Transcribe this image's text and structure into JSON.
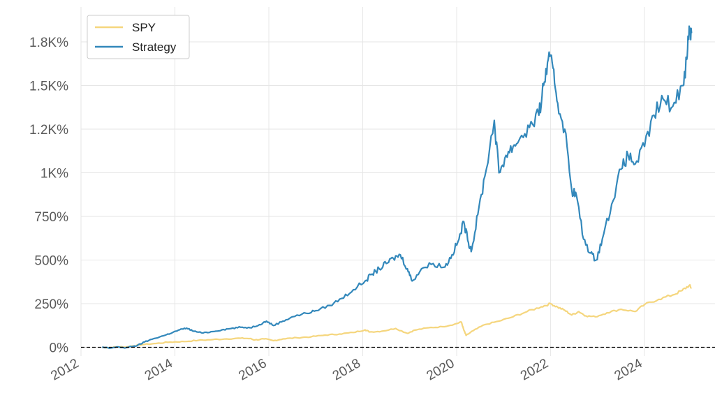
{
  "chart_data": {
    "type": "line",
    "title": "",
    "xlabel": "",
    "ylabel": "",
    "y_format": "percent",
    "xlim": [
      2012.0,
      2025.5
    ],
    "ylim": [
      -50,
      1950
    ],
    "x_ticks": [
      2012,
      2014,
      2016,
      2018,
      2020,
      2022,
      2024
    ],
    "x_tick_labels": [
      "2012",
      "2014",
      "2016",
      "2018",
      "2020",
      "2022",
      "2024"
    ],
    "y_ticks": [
      0,
      250,
      500,
      750,
      1000,
      1250,
      1500,
      1750
    ],
    "y_tick_labels": [
      "0%",
      "250%",
      "500%",
      "750%",
      "1K%",
      "1.2K%",
      "1.5K%",
      "1.8K%"
    ],
    "grid": true,
    "zero_line": {
      "value": 0,
      "style": "dashed",
      "color": "#000000"
    },
    "legend": {
      "position": "top-left",
      "entries": [
        "SPY",
        "Strategy"
      ]
    },
    "series": [
      {
        "name": "SPY",
        "color": "#f5d67e",
        "points": [
          [
            2012.45,
            0
          ],
          [
            2012.6,
            -2
          ],
          [
            2012.8,
            3
          ],
          [
            2012.95,
            1
          ],
          [
            2013.1,
            8
          ],
          [
            2013.3,
            15
          ],
          [
            2013.6,
            22
          ],
          [
            2013.9,
            30
          ],
          [
            2014.2,
            33
          ],
          [
            2014.5,
            40
          ],
          [
            2014.8,
            44
          ],
          [
            2015.1,
            48
          ],
          [
            2015.4,
            52
          ],
          [
            2015.6,
            50
          ],
          [
            2015.7,
            42
          ],
          [
            2015.9,
            48
          ],
          [
            2016.1,
            38
          ],
          [
            2016.3,
            48
          ],
          [
            2016.6,
            55
          ],
          [
            2016.9,
            60
          ],
          [
            2017.2,
            70
          ],
          [
            2017.5,
            76
          ],
          [
            2017.8,
            85
          ],
          [
            2018.05,
            100
          ],
          [
            2018.15,
            88
          ],
          [
            2018.4,
            92
          ],
          [
            2018.7,
            108
          ],
          [
            2018.95,
            80
          ],
          [
            2019.1,
            98
          ],
          [
            2019.4,
            112
          ],
          [
            2019.7,
            118
          ],
          [
            2019.95,
            132
          ],
          [
            2020.1,
            145
          ],
          [
            2020.15,
            100
          ],
          [
            2020.2,
            68
          ],
          [
            2020.35,
            95
          ],
          [
            2020.6,
            130
          ],
          [
            2020.9,
            150
          ],
          [
            2021.2,
            175
          ],
          [
            2021.5,
            205
          ],
          [
            2021.8,
            232
          ],
          [
            2022.0,
            250
          ],
          [
            2022.15,
            230
          ],
          [
            2022.3,
            212
          ],
          [
            2022.45,
            185
          ],
          [
            2022.6,
            205
          ],
          [
            2022.75,
            180
          ],
          [
            2022.95,
            175
          ],
          [
            2023.2,
            198
          ],
          [
            2023.5,
            218
          ],
          [
            2023.8,
            205
          ],
          [
            2024.0,
            245
          ],
          [
            2024.3,
            275
          ],
          [
            2024.6,
            300
          ],
          [
            2024.8,
            325
          ],
          [
            2024.95,
            355
          ],
          [
            2025.0,
            340
          ]
        ]
      },
      {
        "name": "Strategy",
        "color": "#3388bb",
        "points": [
          [
            2012.45,
            0
          ],
          [
            2012.6,
            -5
          ],
          [
            2012.8,
            2
          ],
          [
            2012.95,
            -3
          ],
          [
            2013.1,
            5
          ],
          [
            2013.2,
            10
          ],
          [
            2013.35,
            30
          ],
          [
            2013.55,
            50
          ],
          [
            2013.8,
            70
          ],
          [
            2013.95,
            85
          ],
          [
            2014.1,
            100
          ],
          [
            2014.25,
            110
          ],
          [
            2014.4,
            92
          ],
          [
            2014.6,
            82
          ],
          [
            2014.8,
            90
          ],
          [
            2015.0,
            100
          ],
          [
            2015.2,
            108
          ],
          [
            2015.4,
            115
          ],
          [
            2015.6,
            112
          ],
          [
            2015.8,
            130
          ],
          [
            2015.95,
            150
          ],
          [
            2016.1,
            125
          ],
          [
            2016.3,
            150
          ],
          [
            2016.5,
            175
          ],
          [
            2016.8,
            195
          ],
          [
            2017.0,
            210
          ],
          [
            2017.3,
            240
          ],
          [
            2017.55,
            280
          ],
          [
            2017.8,
            330
          ],
          [
            2018.05,
            380
          ],
          [
            2018.2,
            420
          ],
          [
            2018.35,
            450
          ],
          [
            2018.5,
            480
          ],
          [
            2018.65,
            510
          ],
          [
            2018.8,
            530
          ],
          [
            2018.95,
            450
          ],
          [
            2019.05,
            380
          ],
          [
            2019.25,
            450
          ],
          [
            2019.5,
            480
          ],
          [
            2019.75,
            460
          ],
          [
            2019.9,
            530
          ],
          [
            2020.05,
            620
          ],
          [
            2020.15,
            720
          ],
          [
            2020.25,
            600
          ],
          [
            2020.32,
            560
          ],
          [
            2020.45,
            760
          ],
          [
            2020.6,
            980
          ],
          [
            2020.8,
            1300
          ],
          [
            2020.9,
            1000
          ],
          [
            2021.05,
            1100
          ],
          [
            2021.2,
            1150
          ],
          [
            2021.35,
            1200
          ],
          [
            2021.55,
            1260
          ],
          [
            2021.75,
            1330
          ],
          [
            2021.85,
            1500
          ],
          [
            2021.95,
            1650
          ],
          [
            2022.05,
            1600
          ],
          [
            2022.15,
            1400
          ],
          [
            2022.3,
            1250
          ],
          [
            2022.45,
            900
          ],
          [
            2022.55,
            870
          ],
          [
            2022.7,
            620
          ],
          [
            2022.85,
            540
          ],
          [
            2022.97,
            500
          ],
          [
            2023.1,
            620
          ],
          [
            2023.3,
            820
          ],
          [
            2023.5,
            1020
          ],
          [
            2023.65,
            1100
          ],
          [
            2023.8,
            1050
          ],
          [
            2024.0,
            1150
          ],
          [
            2024.2,
            1330
          ],
          [
            2024.4,
            1420
          ],
          [
            2024.6,
            1380
          ],
          [
            2024.8,
            1500
          ],
          [
            2024.9,
            1650
          ],
          [
            2024.95,
            1840
          ],
          [
            2025.0,
            1800
          ]
        ]
      }
    ]
  }
}
